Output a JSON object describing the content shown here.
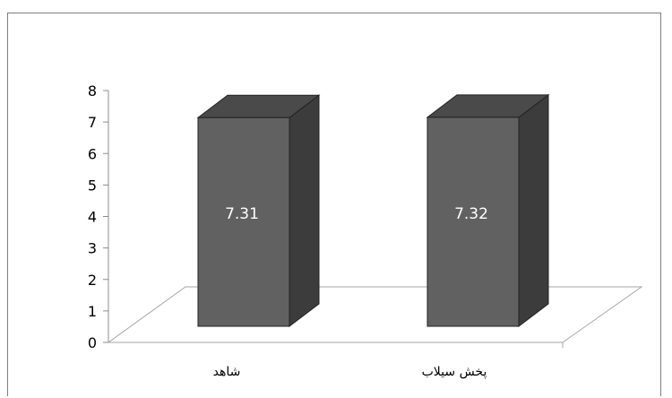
{
  "chart_data": {
    "type": "bar",
    "categories": [
      "شاهد",
      "پخش سیلاب"
    ],
    "values": [
      7.31,
      7.32
    ],
    "data_labels": [
      "7.31",
      "7.32"
    ],
    "ylim": [
      0,
      8
    ],
    "yticks": [
      "0",
      "1",
      "2",
      "3",
      "4",
      "5",
      "6",
      "7",
      "8"
    ],
    "title": "",
    "xlabel": "",
    "ylabel": "",
    "grid": false,
    "legend": "none",
    "style": "3d-column"
  },
  "colors": {
    "bar_front": "#616161",
    "bar_top": "#4a4a4a",
    "bar_side": "#3c3c3c",
    "bar_edge": "#222222",
    "floor": "#a6a6a6",
    "axis": "#8c8c8c"
  }
}
